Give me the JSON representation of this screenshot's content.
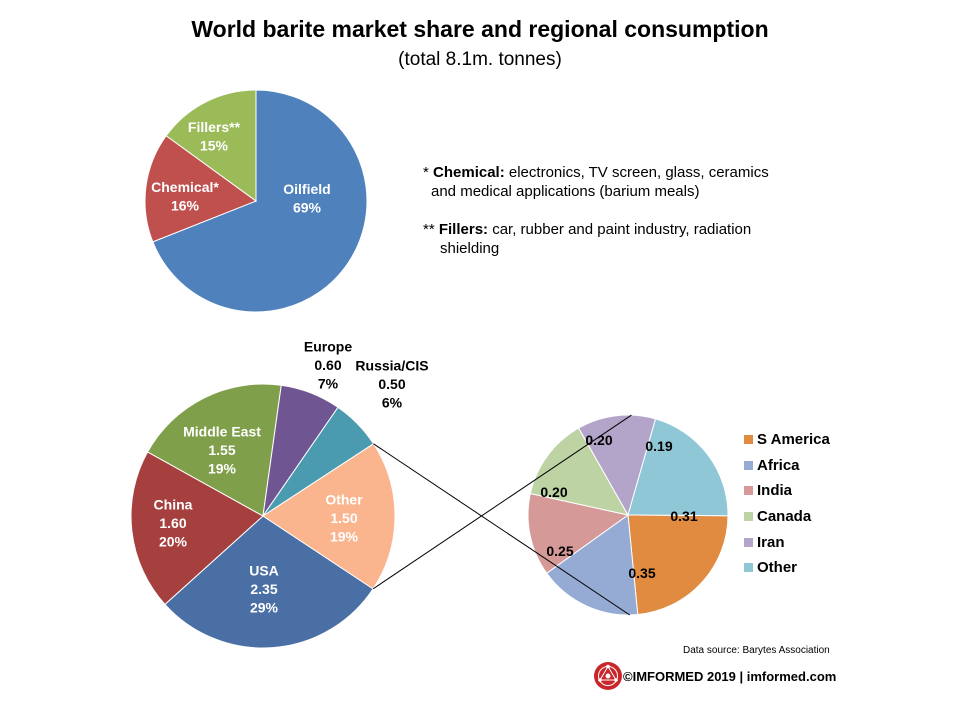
{
  "title": "World barite market share and regional consumption",
  "subtitle": "(total 8.1m. tonnes)",
  "notes": {
    "chemical": {
      "marker": "* ",
      "term": "Chemical:",
      "line1": " electronics, TV screen, glass, ceramics",
      "line2": "and medical applications (barium meals)"
    },
    "fillers": {
      "marker": "** ",
      "term": "Fillers:",
      "line1": " car, rubber and paint industry, radiation",
      "line2": "shielding"
    }
  },
  "source": "Data source: Barytes Association",
  "footer": "©IMFORMED 2019  | imformed.com",
  "chart_data": [
    {
      "type": "pie",
      "title": "",
      "slices": [
        {
          "label": "Oilfield",
          "pct": "69%",
          "value": 69,
          "color": "#4F81BD"
        },
        {
          "label": "Chemical*",
          "pct": "16%",
          "value": 16,
          "color": "#C0504D"
        },
        {
          "label": "Fillers**",
          "pct": "15%",
          "value": 15,
          "color": "#9BBB59"
        }
      ]
    },
    {
      "type": "pie",
      "title": "",
      "slices": [
        {
          "label": "USA",
          "value": 2.35,
          "value_label": "2.35",
          "pct": "29%",
          "color": "#4A6FA5"
        },
        {
          "label": "China",
          "value": 1.6,
          "value_label": "1.60",
          "pct": "20%",
          "color": "#A6403E"
        },
        {
          "label": "Middle East",
          "value": 1.55,
          "value_label": "1.55",
          "pct": "19%",
          "color": "#7F9F4A"
        },
        {
          "label": "Europe",
          "value": 0.6,
          "value_label": "0.60",
          "pct": "7%",
          "color": "#6F5693"
        },
        {
          "label": "Russia/CIS",
          "value": 0.5,
          "value_label": "0.50",
          "pct": "6%",
          "color": "#4A9BB0"
        },
        {
          "label": "Other",
          "value": 1.5,
          "value_label": "1.50",
          "pct": "19%",
          "color": "#FAB58E"
        }
      ]
    },
    {
      "type": "pie",
      "title": "",
      "legend_position": "right",
      "slices": [
        {
          "label": "S America",
          "value": 0.35,
          "value_label": "0.35",
          "color": "#E08B40"
        },
        {
          "label": "Africa",
          "value": 0.25,
          "value_label": "0.25",
          "color": "#95ABD4"
        },
        {
          "label": "India",
          "value": 0.2,
          "value_label": "0.20",
          "color": "#D59A98"
        },
        {
          "label": "Canada",
          "value": 0.2,
          "value_label": "0.20",
          "color": "#BDD3A4"
        },
        {
          "label": "Iran",
          "value": 0.19,
          "value_label": "0.19",
          "color": "#B3A5C9"
        },
        {
          "label": "Other",
          "value": 0.31,
          "value_label": "0.31",
          "color": "#8FC7D7"
        }
      ]
    }
  ]
}
